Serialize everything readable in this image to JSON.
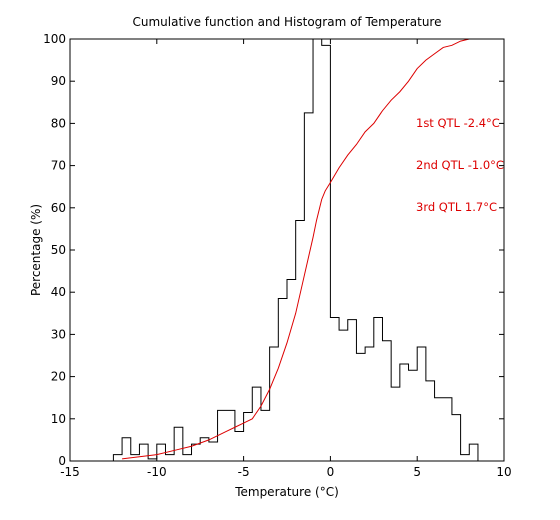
{
  "chart_data": {
    "type": "line",
    "title": "Cumulative function and Histogram of Temperature",
    "xlabel": "Temperature (°C)",
    "ylabel": "Percentage (%)",
    "xlim": [
      -15,
      10
    ],
    "ylim": [
      0,
      100
    ],
    "xticks": [
      -15,
      -10,
      -5,
      0,
      5,
      10
    ],
    "yticks": [
      0,
      10,
      20,
      30,
      40,
      50,
      60,
      70,
      80,
      90,
      100
    ],
    "grid": false,
    "series": [
      {
        "kind": "histogram",
        "color": "#000000",
        "bin_width": 0.5,
        "bins_start": [
          -12.5,
          -12.0,
          -11.5,
          -11.0,
          -10.5,
          -10.0,
          -9.5,
          -9.0,
          -8.5,
          -8.0,
          -7.5,
          -7.0,
          -6.5,
          -6.0,
          -5.5,
          -5.0,
          -4.5,
          -4.0,
          -3.5,
          -3.0,
          -2.5,
          -2.0,
          -1.5,
          -1.0,
          -0.5,
          0.0,
          0.5,
          1.0,
          1.5,
          2.0,
          2.5,
          3.0,
          3.5,
          4.0,
          4.5,
          5.0,
          5.5,
          6.0,
          6.5,
          7.0,
          7.5,
          8.0
        ],
        "values": [
          1.5,
          5.5,
          1.5,
          4.0,
          0.5,
          4.0,
          1.5,
          8.0,
          1.5,
          4.0,
          5.5,
          4.5,
          12.0,
          12.0,
          7.0,
          11.5,
          17.5,
          12.0,
          27.0,
          38.5,
          43.0,
          57.0,
          82.5,
          100.0,
          98.5,
          34.0,
          31.0,
          33.5,
          25.5,
          27.0,
          34.0,
          28.5,
          17.5,
          23.0,
          21.5,
          27.0,
          19.0,
          15.0,
          15.0,
          11.0,
          1.5,
          4.0
        ]
      },
      {
        "kind": "cumulative",
        "color": "#dd0000",
        "x": [
          -12.0,
          -11.0,
          -10.0,
          -9.0,
          -8.0,
          -7.0,
          -6.5,
          -6.0,
          -5.5,
          -5.0,
          -4.5,
          -4.0,
          -3.5,
          -3.0,
          -2.5,
          -2.0,
          -1.5,
          -1.0,
          -0.8,
          -0.5,
          -0.3,
          0.0,
          0.5,
          1.0,
          1.5,
          2.0,
          2.5,
          3.0,
          3.5,
          4.0,
          4.5,
          5.0,
          5.5,
          6.0,
          6.5,
          7.0,
          7.5,
          8.0,
          10.0
        ],
        "y": [
          0.5,
          1.0,
          1.5,
          2.5,
          3.5,
          5.0,
          6.0,
          7.0,
          8.0,
          9.0,
          10.0,
          13.0,
          17.0,
          22.0,
          28.0,
          35.0,
          44.0,
          53.0,
          57.0,
          62.0,
          64.0,
          66.0,
          69.5,
          72.5,
          75.0,
          78.0,
          80.0,
          83.0,
          85.5,
          87.5,
          90.0,
          93.0,
          95.0,
          96.5,
          98.0,
          98.5,
          99.5,
          100.0,
          100.0
        ]
      }
    ],
    "annotations": [
      {
        "text": "1st QTL -2.4°C",
        "y": 80
      },
      {
        "text": "2nd QTL -1.0°C",
        "y": 70
      },
      {
        "text": "3rd QTL  1.7°C",
        "y": 60
      }
    ]
  }
}
